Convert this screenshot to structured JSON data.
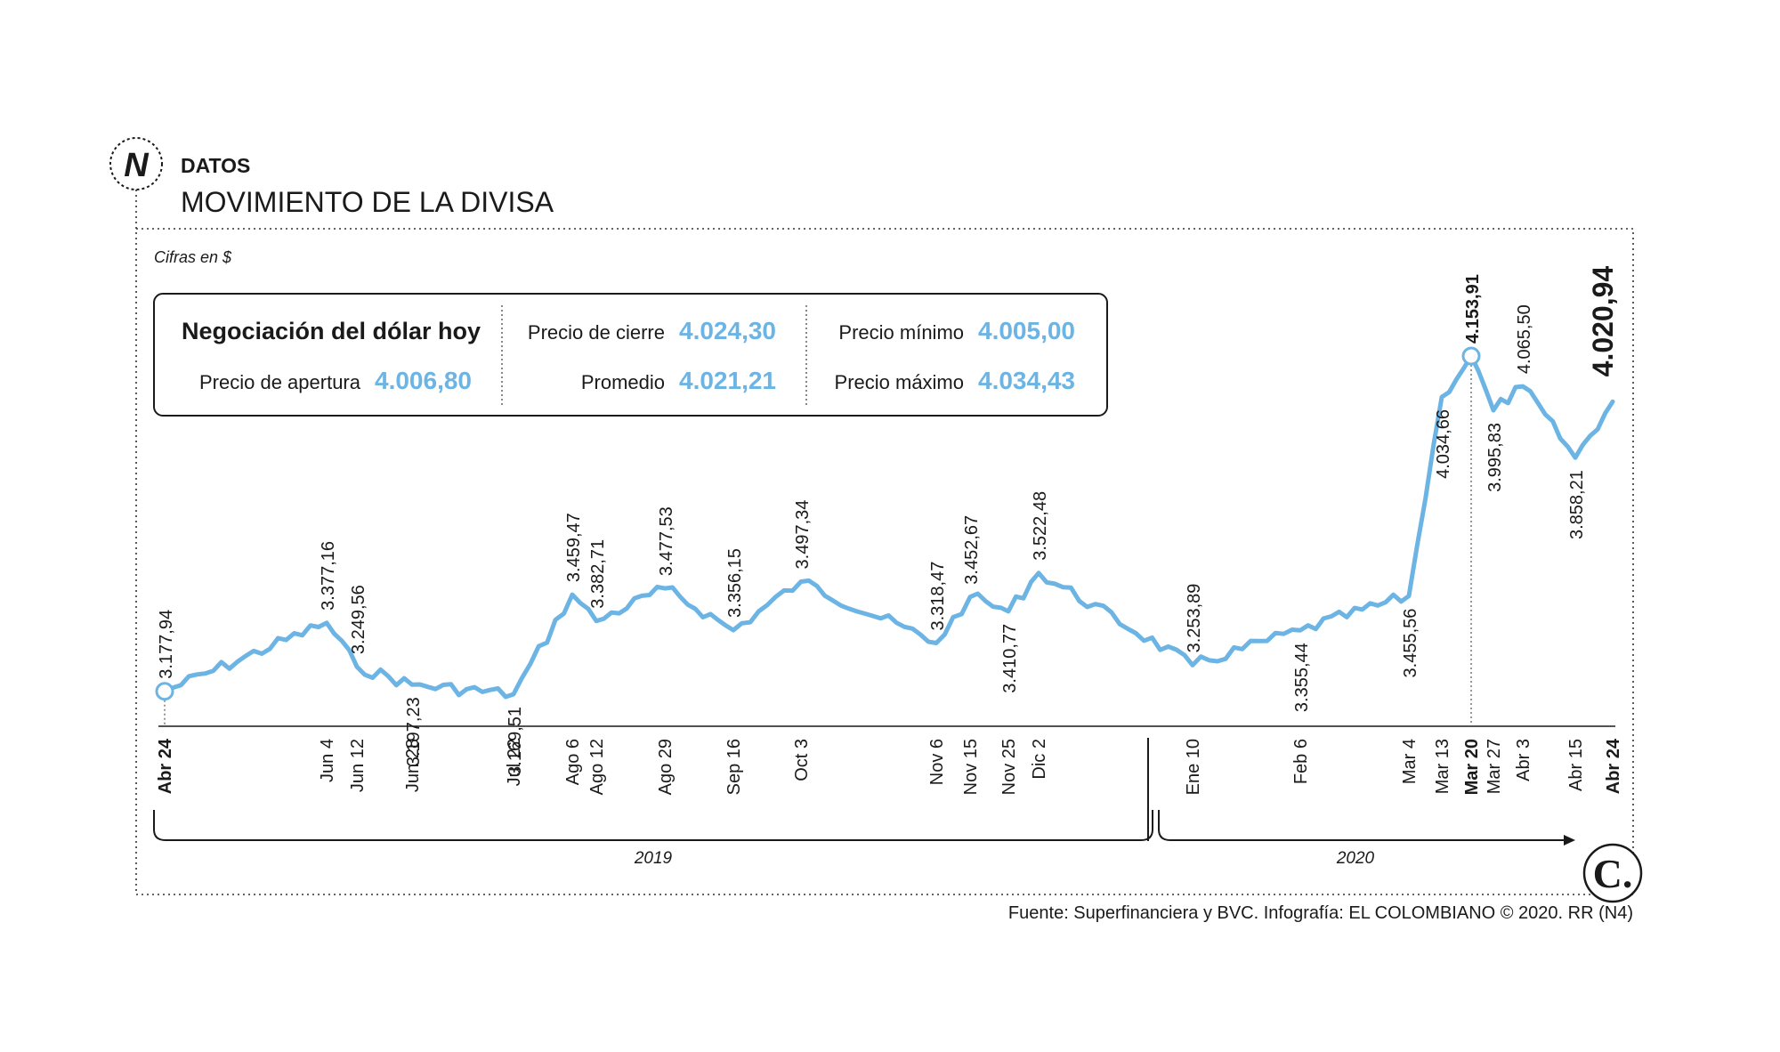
{
  "header": {
    "logo_letter": "N",
    "section": "DATOS",
    "title": "MOVIMIENTO DE LA DIVISA"
  },
  "units_note": "Cifras en $",
  "summary": {
    "heading": "Negociación del dólar hoy",
    "items": [
      {
        "label": "Precio de apertura",
        "value": "4.006,80"
      },
      {
        "label": "Precio de cierre",
        "value": "4.024,30"
      },
      {
        "label": "Promedio",
        "value": "4.021,21"
      },
      {
        "label": "Precio mínimo",
        "value": "4.005,00"
      },
      {
        "label": "Precio máximo",
        "value": "4.034,43"
      }
    ]
  },
  "chart_data": {
    "type": "line",
    "x": [
      "Abr 24",
      "Jun 4",
      "Jun 12",
      "Jun 28",
      "Jul 22",
      "Ago 6",
      "Ago 12",
      "Ago 29",
      "Sep 16",
      "Oct 3",
      "Nov 6",
      "Nov 15",
      "Nov 25",
      "Dic 2",
      "Ene 10",
      "Feb 6",
      "Mar 4",
      "Mar 13",
      "Mar 20",
      "Mar 27",
      "Abr 3",
      "Abr 15",
      "Abr 24"
    ],
    "values": [
      3177.94,
      3377.16,
      3249.56,
      3197.23,
      3169.51,
      3459.47,
      3382.71,
      3477.53,
      3356.15,
      3497.34,
      3318.47,
      3452.67,
      3410.77,
      3522.48,
      3253.89,
      3355.44,
      3455.56,
      4034.66,
      4153.91,
      3995.83,
      4065.5,
      3858.21,
      4020.94
    ],
    "point_labels": [
      "3.177,94",
      "3.377,16",
      "3.249,56",
      "3.197,23",
      "3.169,51",
      "3.459,47",
      "3.382,71",
      "3.477,53",
      "3.356,15",
      "3.497,34",
      "3.318,47",
      "3.452,67",
      "3.410,77",
      "3.522,48",
      "3.253,89",
      "3.355,44",
      "3.455,56",
      "4.034,66",
      "4.153,91",
      "3.995,83",
      "4.065,50",
      "3.858,21",
      "4.020,94"
    ],
    "bold_ticks": [
      "Mar 20",
      "Abr 24"
    ],
    "highlighted": [
      "Mar 20",
      "Abr 24"
    ],
    "line_color": "#6cb4e4",
    "years": [
      "2019",
      "2020"
    ],
    "grid": false
  },
  "footer": {
    "source": "Fuente: Superfinanciera y BVC. Infografía: EL COLOMBIANO © 2020. RR (N4)",
    "brand_mark": "C."
  }
}
